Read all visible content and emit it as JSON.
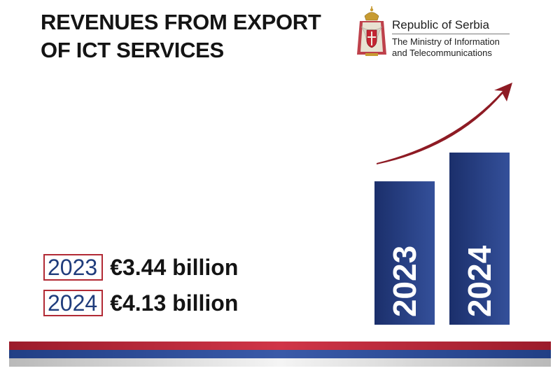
{
  "title": {
    "line1": "REVENUES FROM EXPORT",
    "line2": "OF ICT SERVICES"
  },
  "org": {
    "name": "Republic of Serbia",
    "ministry_line1": "The Ministry of Information",
    "ministry_line2": "and Telecommunications"
  },
  "stats": [
    {
      "year": "2023",
      "amount": "€3.44 billion"
    },
    {
      "year": "2024",
      "amount": "€4.13 billion"
    }
  ],
  "colors": {
    "bar_dark": "#1b2f6b",
    "bar_light": "#34509a",
    "arrow": "#8e1b24",
    "year_text": "#1f3c7c",
    "box_border": "#b22a35",
    "stripe_red": "#9b1c2b",
    "stripe_blue": "#213f85",
    "stripe_white": "#d9d9d9"
  },
  "chart_data": {
    "type": "bar",
    "categories": [
      "2023",
      "2024"
    ],
    "values": [
      3.44,
      4.13
    ],
    "unit": "€ billion",
    "ylim": [
      0,
      4.13
    ],
    "bar_labels_rotated": true,
    "trend_arrow": "up"
  }
}
